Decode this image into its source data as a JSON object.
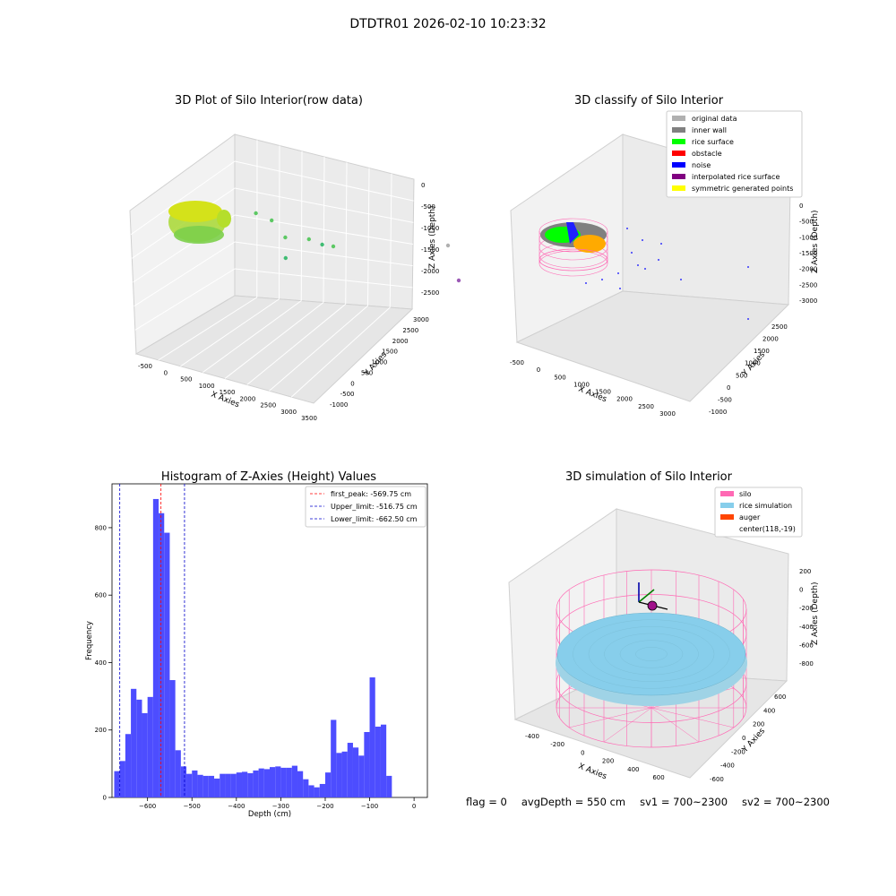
{
  "figure_title": "DTDTR01 2026-02-10 10:23:32",
  "status": {
    "flag": "flag = 0",
    "avg_depth": "avgDepth = 550 cm",
    "sv1": "sv1 = 700~2300",
    "sv2": "sv2 = 700~2300"
  },
  "colors": {
    "hist_bar": "#4d4dff",
    "peak_line": "#ff0000",
    "limit_line": "#0000cc",
    "silo": "#ff69b4",
    "rice_sim": "#87ceeb",
    "auger": "#ff4500",
    "rice_green": "#00ff00",
    "wall_gray": "#808080",
    "noise_blue": "#0000ff",
    "interp_purple": "#800080",
    "sym_yellow": "#ffff00",
    "orig_gray": "#b0b0b0"
  },
  "chart_data": [
    {
      "type": "scatter",
      "projection": "3d",
      "title": "3D Plot of Silo Interior(row data)",
      "xlabel": "X Axies",
      "ylabel": "Y Axies",
      "zlabel": "Z Axies (Depth)",
      "xticks": [
        "-500",
        "0",
        "500",
        "1000",
        "1500",
        "2000",
        "2500",
        "3000",
        "3500"
      ],
      "yticks": [
        "-1000",
        "-500",
        "0",
        "500",
        "1000",
        "1500",
        "2000",
        "2500",
        "3000"
      ],
      "zticks": [
        "0",
        "-500",
        "-1000",
        "-1500",
        "-2000",
        "-2500"
      ],
      "xlim": [
        -700,
        3500
      ],
      "ylim": [
        -1000,
        3000
      ],
      "zlim": [
        -2700,
        0
      ],
      "note_colormap": "viridis-like, yellow-green dense cluster near origin",
      "scattered_points": [
        {
          "x": 700,
          "y": 200,
          "z": -900,
          "color": "#5cc863"
        },
        {
          "x": 900,
          "y": 400,
          "z": -1100,
          "color": "#5cc863"
        },
        {
          "x": 1200,
          "y": 300,
          "z": -1300,
          "color": "#5cc863"
        },
        {
          "x": 1500,
          "y": 600,
          "z": -1400,
          "color": "#5cc863"
        },
        {
          "x": 1700,
          "y": 700,
          "z": -1500,
          "color": "#3fbc73"
        },
        {
          "x": 1300,
          "y": 100,
          "z": -1600,
          "color": "#3fbc73"
        },
        {
          "x": 2000,
          "y": 500,
          "z": -1300,
          "color": "#5cc863"
        },
        {
          "x": 3200,
          "y": 2500,
          "z": -2000,
          "color": "#b0b0b0"
        },
        {
          "x": 3400,
          "y": 2500,
          "z": -2700,
          "color": "#9b59b6"
        }
      ]
    },
    {
      "type": "scatter",
      "projection": "3d",
      "title": "3D classify of Silo Interior",
      "xlabel": "X Axies",
      "ylabel": "Y Axies",
      "zlabel": "Z Axies (Depth)",
      "xticks": [
        "-500",
        "0",
        "500",
        "1000",
        "1500",
        "2000",
        "2500",
        "3000"
      ],
      "yticks": [
        "-1000",
        "-500",
        "0",
        "500",
        "1000",
        "1500",
        "2000",
        "2500"
      ],
      "zticks": [
        "0",
        "-500",
        "-1000",
        "-1500",
        "-2000",
        "-2500",
        "-3000"
      ],
      "legend_placement": "upper right",
      "legend": [
        {
          "label": "original data",
          "color": "#b0b0b0"
        },
        {
          "label": "inner wall",
          "color": "#808080"
        },
        {
          "label": "rice surface",
          "color": "#00ff00"
        },
        {
          "label": "obstacle",
          "color": "#ff0000"
        },
        {
          "label": "noise",
          "color": "#0000ff"
        },
        {
          "label": "interpolated rice surface",
          "color": "#800080"
        },
        {
          "label": "symmetric generated points",
          "color": "#ffff00"
        }
      ]
    },
    {
      "type": "bar",
      "title": "Histogram of Z-Axies (Height) Values",
      "xlabel": "Depth (cm)",
      "ylabel": "Frequency",
      "xlim": [
        -680,
        30
      ],
      "ylim": [
        0,
        930
      ],
      "xticks": [
        -600,
        -500,
        -400,
        -300,
        -200,
        -100,
        0
      ],
      "yticks": [
        0,
        200,
        400,
        600,
        800
      ],
      "bin_start": -675,
      "bin_width": 12.5,
      "values": [
        78,
        108,
        188,
        322,
        290,
        250,
        298,
        885,
        843,
        785,
        348,
        140,
        92,
        70,
        80,
        67,
        64,
        64,
        56,
        70,
        70,
        70,
        74,
        76,
        72,
        80,
        86,
        84,
        90,
        92,
        88,
        88,
        94,
        78,
        54,
        36,
        30,
        40,
        74,
        230,
        132,
        136,
        162,
        148,
        124,
        194,
        356,
        210,
        216,
        64
      ],
      "vlines": [
        {
          "label": "first_peak: -569.75 cm",
          "x": -569.75,
          "color": "#ff0000"
        },
        {
          "label": "Upper_limit: -516.75 cm",
          "x": -516.75,
          "color": "#0000cc"
        },
        {
          "label": "Lower_limit: -662.50 cm",
          "x": -662.5,
          "color": "#0000cc"
        }
      ],
      "legend_placement": "upper right"
    },
    {
      "type": "surface",
      "projection": "3d",
      "title": "3D simulation of Silo Interior",
      "xlabel": "X Axies",
      "ylabel": "Y Axies",
      "zlabel": "Z Axies (Depth)",
      "xticks": [
        "-400",
        "-200",
        "0",
        "200",
        "400",
        "600"
      ],
      "yticks": [
        "-600",
        "-400",
        "-200",
        "0",
        "200",
        "400",
        "600"
      ],
      "zticks": [
        "200",
        "0",
        "-200",
        "-400",
        "-600",
        "-800"
      ],
      "legend_placement": "upper right",
      "legend": [
        {
          "label": "silo",
          "color": "#ff69b4"
        },
        {
          "label": "rice simulation",
          "color": "#87ceeb"
        },
        {
          "label": "auger",
          "color": "#ff4500"
        },
        {
          "label": "center(118,-19)",
          "color": ""
        }
      ]
    }
  ]
}
